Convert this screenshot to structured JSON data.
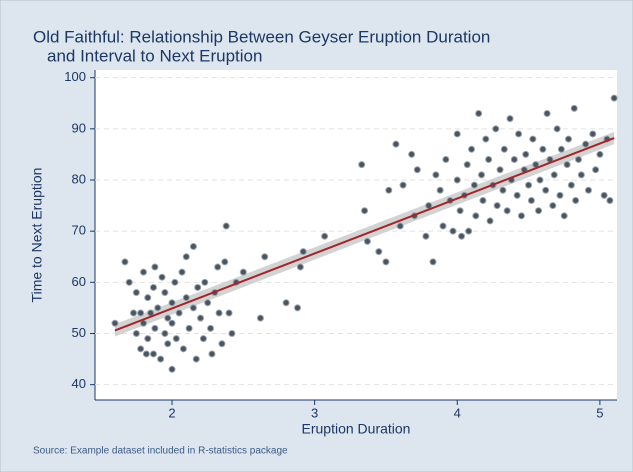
{
  "chart_data": {
    "type": "scatter",
    "title": [
      "Old Faithful: Relationship Between Geyser Eruption Duration",
      "and Interval to Next Eruption"
    ],
    "x_label": "Eruption Duration",
    "y_label": "Time to Next Eruption",
    "source": "Source: Example dataset included in R-statistics package",
    "xlim": [
      1.46,
      5.12
    ],
    "ylim": [
      37,
      101.5
    ],
    "xticks": [
      2,
      3,
      4,
      5
    ],
    "yticks": [
      40,
      50,
      60,
      70,
      80,
      90,
      100
    ],
    "grid": true,
    "color": "#4a5560",
    "x": [
      1.6,
      1.67,
      1.7,
      1.73,
      1.75,
      1.75,
      1.78,
      1.78,
      1.8,
      1.8,
      1.82,
      1.83,
      1.83,
      1.85,
      1.87,
      1.87,
      1.88,
      1.88,
      1.9,
      1.92,
      1.93,
      1.95,
      1.95,
      1.97,
      1.97,
      2.0,
      2.0,
      2.0,
      2.02,
      2.03,
      2.05,
      2.07,
      2.08,
      2.1,
      2.1,
      2.12,
      2.15,
      2.15,
      2.17,
      2.18,
      2.2,
      2.22,
      2.23,
      2.25,
      2.27,
      2.28,
      2.3,
      2.32,
      2.33,
      2.35,
      2.37,
      2.38,
      2.4,
      2.42,
      2.45,
      2.5,
      2.62,
      2.65,
      2.8,
      2.88,
      2.9,
      2.92,
      3.07,
      3.33,
      3.35,
      3.37,
      3.45,
      3.5,
      3.52,
      3.57,
      3.6,
      3.62,
      3.68,
      3.7,
      3.72,
      3.78,
      3.8,
      3.83,
      3.85,
      3.88,
      3.9,
      3.92,
      3.95,
      3.97,
      4.0,
      4.0,
      4.02,
      4.03,
      4.05,
      4.07,
      4.08,
      4.1,
      4.12,
      4.13,
      4.15,
      4.17,
      4.18,
      4.2,
      4.22,
      4.23,
      4.25,
      4.27,
      4.28,
      4.3,
      4.32,
      4.33,
      4.35,
      4.37,
      4.38,
      4.4,
      4.42,
      4.43,
      4.45,
      4.47,
      4.48,
      4.5,
      4.52,
      4.53,
      4.55,
      4.57,
      4.58,
      4.6,
      4.62,
      4.63,
      4.65,
      4.67,
      4.68,
      4.7,
      4.72,
      4.73,
      4.75,
      4.77,
      4.78,
      4.8,
      4.82,
      4.83,
      4.85,
      4.87,
      4.9,
      4.92,
      4.95,
      4.97,
      5.0,
      5.03,
      5.07,
      5.1,
      5.05
    ],
    "values": [
      52,
      64,
      60,
      54,
      50,
      58,
      47,
      54,
      52,
      62,
      46,
      57,
      49,
      54,
      46,
      59,
      51,
      63,
      55,
      45,
      61,
      50,
      58,
      48,
      53,
      52,
      56,
      43,
      60,
      49,
      54,
      62,
      47,
      57,
      65,
      51,
      55,
      67,
      45,
      59,
      53,
      49,
      60,
      56,
      51,
      46,
      58,
      63,
      54,
      48,
      64,
      71,
      54,
      50,
      60,
      62,
      53,
      65,
      56,
      55,
      63,
      66,
      69,
      83,
      74,
      68,
      66,
      64,
      78,
      87,
      71,
      79,
      85,
      73,
      82,
      69,
      75,
      64,
      81,
      78,
      71,
      84,
      76,
      70,
      89,
      80,
      74,
      69,
      77,
      83,
      70,
      86,
      79,
      73,
      93,
      81,
      76,
      88,
      84,
      72,
      79,
      90,
      75,
      82,
      78,
      86,
      74,
      92,
      80,
      84,
      77,
      89,
      73,
      82,
      85,
      79,
      76,
      88,
      83,
      74,
      80,
      86,
      78,
      93,
      84,
      75,
      81,
      90,
      77,
      86,
      73,
      83,
      88,
      79,
      94,
      76,
      84,
      81,
      87,
      78,
      89,
      82,
      85,
      77,
      76,
      96,
      88
    ],
    "fit": {
      "color": "#a0262a",
      "band_color": "#c8c8c8",
      "x": [
        1.6,
        5.1
      ],
      "values": [
        50.6,
        88.2
      ],
      "lower": [
        49.4,
        87.0
      ],
      "upper": [
        51.8,
        89.4
      ]
    }
  }
}
